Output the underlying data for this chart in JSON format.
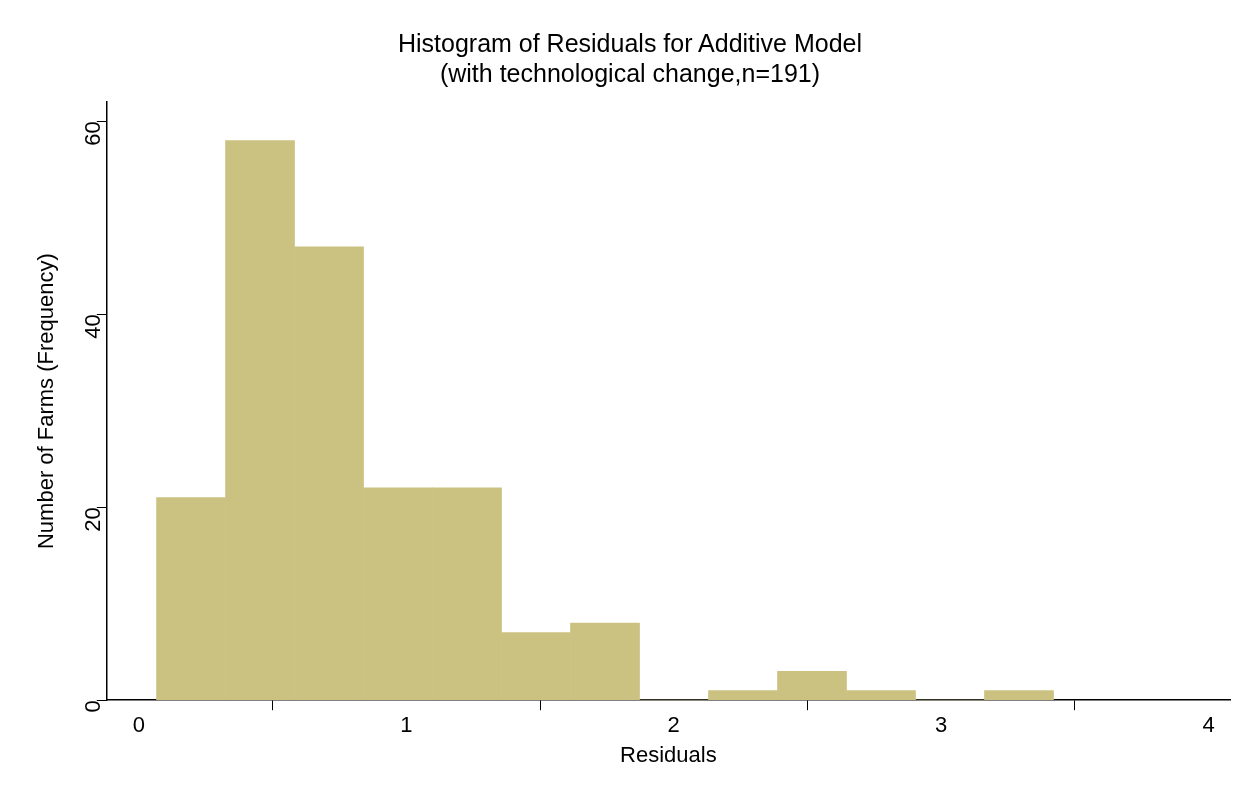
{
  "chart_data": {
    "type": "histogram",
    "title": [
      "Histogram of Residuals for Additive Model",
      "(with technological change,n=191)"
    ],
    "xlabel": "Residuals",
    "ylabel": "Number of Farms (Frequency)",
    "bins": [
      0.066,
      0.324,
      0.582,
      0.84,
      1.098,
      1.356,
      1.614,
      1.872,
      2.13,
      2.388,
      2.646,
      2.904,
      3.162,
      3.42
    ],
    "values": [
      21,
      58,
      47,
      22,
      22,
      7,
      8,
      0,
      1,
      3,
      1,
      0,
      1
    ],
    "color": "#cbc281",
    "xlim": [
      -0.12,
      4.08
    ],
    "xticks": [
      0,
      1,
      2,
      3,
      4
    ],
    "ylim": [
      0,
      62
    ],
    "yticks": [
      0,
      20,
      40,
      60
    ],
    "grid": false,
    "legend": false
  }
}
